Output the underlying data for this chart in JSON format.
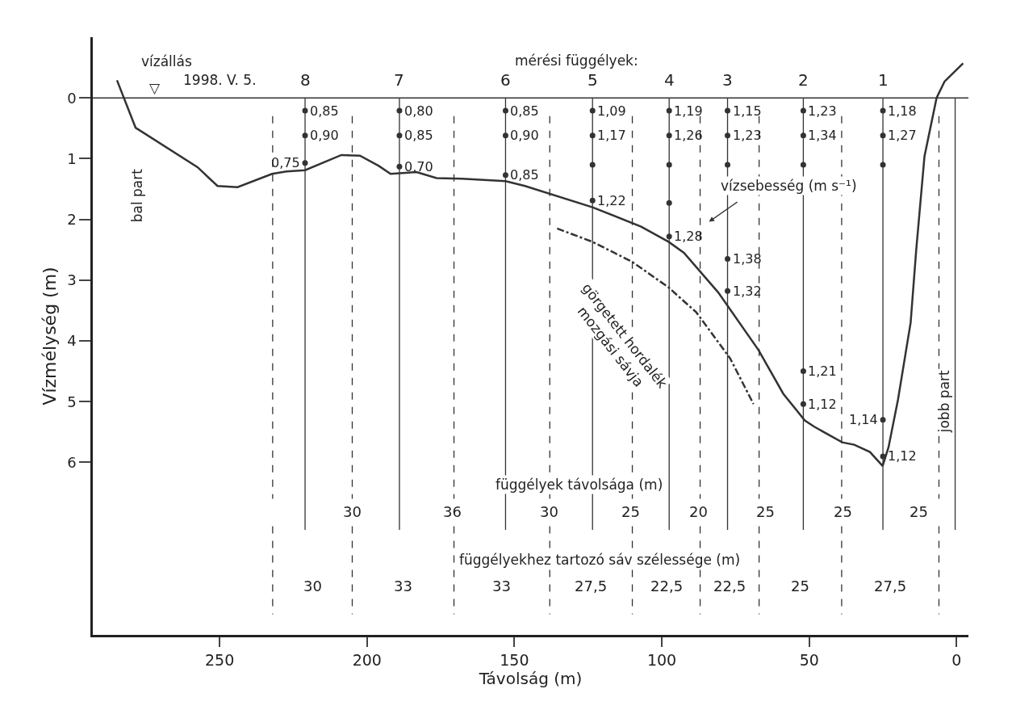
{
  "chart_data": {
    "type": "line",
    "xlabel": "Távolság (m)",
    "ylabel": "Vízmélység (m)",
    "xlim": [
      293,
      -4
    ],
    "xticks": [
      250,
      200,
      150,
      100,
      50,
      0
    ],
    "ylim": [
      8.84,
      -1.0
    ],
    "yticks": [
      0,
      1,
      2,
      3,
      4,
      5,
      6
    ],
    "series": [
      {
        "type": "line",
        "color": "#333333",
        "line_style": "solid",
        "x": [
          284.8,
          278.5,
          257.5,
          250.7,
          243.9,
          232.2,
          227.3,
          221,
          208.7,
          202.4,
          196,
          192,
          183.2,
          176.4,
          167.8,
          153,
          146.4,
          123.5,
          107,
          97.7,
          92.5,
          80.9,
          67.2,
          58.8,
          51.5,
          48.4,
          38.8,
          34.7,
          29.4,
          25.1,
          23.1,
          19.9,
          15.6,
          13.7,
          10.9,
          6.8,
          4.1,
          -2.2
        ],
        "values": [
          -0.29,
          0.49,
          1.14,
          1.45,
          1.47,
          1.25,
          1.21,
          1.19,
          0.94,
          0.95,
          1.12,
          1.25,
          1.22,
          1.32,
          1.33,
          1.37,
          1.45,
          1.8,
          2.12,
          2.37,
          2.55,
          3.2,
          4.15,
          4.87,
          5.31,
          5.41,
          5.67,
          5.71,
          5.83,
          6.06,
          5.75,
          4.97,
          3.7,
          2.5,
          0.96,
          0,
          -0.27,
          -0.57
        ]
      },
      {
        "type": "line",
        "color": "#333333",
        "line_style": "dashdot",
        "x": [
          135.5,
          123.5,
          110,
          97.7,
          88.3,
          76.8,
          68.9
        ],
        "values": [
          2.15,
          2.37,
          2.7,
          3.12,
          3.53,
          4.29,
          5.04
        ]
      },
      {
        "type": "scatter",
        "color": "#333333",
        "marker": "circle",
        "x": [
          221,
          221,
          221,
          189,
          189,
          189,
          153,
          153,
          153,
          123.5,
          123.5,
          123.5,
          123.5,
          97.5,
          97.5,
          97.5,
          97.5,
          97.5,
          77.7,
          77.7,
          77.7,
          77.7,
          77.7,
          52,
          52,
          52,
          52,
          52,
          25,
          25,
          25,
          25,
          25
        ],
        "values": [
          0.21,
          0.62,
          1.07,
          0.21,
          0.62,
          1.13,
          0.21,
          0.62,
          1.27,
          0.21,
          0.62,
          1.1,
          1.69,
          0.21,
          0.62,
          1.1,
          1.73,
          2.28,
          0.21,
          0.62,
          1.1,
          2.65,
          3.18,
          0.21,
          0.62,
          1.1,
          4.5,
          5.04,
          0.21,
          0.62,
          1.1,
          5.3,
          5.9
        ]
      }
    ],
    "ref_lines": [
      {
        "axis": "y",
        "value": 0,
        "line_style": "solid",
        "color": "#333333"
      },
      {
        "axis": "x",
        "value": 221,
        "line_style": "solid",
        "color": "#333333"
      },
      {
        "axis": "x",
        "value": 189,
        "line_style": "solid",
        "color": "#333333"
      },
      {
        "axis": "x",
        "value": 153,
        "line_style": "solid",
        "color": "#333333"
      },
      {
        "axis": "x",
        "value": 123.5,
        "line_style": "solid",
        "color": "#333333"
      },
      {
        "axis": "x",
        "value": 97.5,
        "line_style": "solid",
        "color": "#333333"
      },
      {
        "axis": "x",
        "value": 77.7,
        "line_style": "solid",
        "color": "#333333"
      },
      {
        "axis": "x",
        "value": 52,
        "line_style": "solid",
        "color": "#333333"
      },
      {
        "axis": "x",
        "value": 25,
        "line_style": "solid",
        "color": "#333333"
      },
      {
        "axis": "x",
        "value": 0.5,
        "line_style": "solid",
        "color": "#333333"
      },
      {
        "axis": "x",
        "value": 232,
        "line_style": "dashed",
        "color": "#333333"
      },
      {
        "axis": "x",
        "value": 205,
        "line_style": "dashed",
        "color": "#333333"
      },
      {
        "axis": "x",
        "value": 170.5,
        "line_style": "dashed",
        "color": "#333333"
      },
      {
        "axis": "x",
        "value": 138,
        "line_style": "dashed",
        "color": "#333333"
      },
      {
        "axis": "x",
        "value": 110,
        "line_style": "dashed",
        "color": "#333333"
      },
      {
        "axis": "x",
        "value": 87,
        "line_style": "dashed",
        "color": "#333333"
      },
      {
        "axis": "x",
        "value": 67,
        "line_style": "dashed",
        "color": "#333333"
      },
      {
        "axis": "x",
        "value": 39,
        "line_style": "dashed",
        "color": "#333333"
      },
      {
        "axis": "x",
        "value": 6,
        "line_style": "dashed",
        "color": "#333333"
      }
    ],
    "annotations": [
      "mérési függélyek:",
      "vízállás",
      "1998. V. 5.",
      "▽",
      "bal part",
      "jobb part",
      "vízsebesség (m s⁻¹)",
      "görgetett hordalék\nmozgási sávja",
      "függélyek távolsága (m)",
      "30",
      "36",
      "30",
      "25",
      "20",
      "25",
      "25",
      "25",
      "függélyekhez tartozó sáv szélessége (m)",
      "30",
      "33",
      "33",
      "27,5",
      "22,5",
      "22,5",
      "25",
      "27,5",
      "8",
      "7",
      "6",
      "5",
      "4",
      "3",
      "2",
      "1",
      {
        "text": "0,85",
        "x": 221,
        "y": 0.21
      },
      {
        "text": "0,90",
        "x": 221,
        "y": 0.62
      },
      {
        "text": "0,75",
        "x": 221,
        "y": 1.07
      },
      {
        "text": "0,80",
        "x": 189,
        "y": 0.21
      },
      {
        "text": "0,85",
        "x": 189,
        "y": 0.62
      },
      {
        "text": "0,70",
        "x": 189,
        "y": 1.13
      },
      {
        "text": "0,85",
        "x": 153,
        "y": 0.21
      },
      {
        "text": "0,90",
        "x": 153,
        "y": 0.62
      },
      {
        "text": "0,85",
        "x": 153,
        "y": 1.27
      },
      {
        "text": "1,09",
        "x": 123.5,
        "y": 0.21
      },
      {
        "text": "1,17",
        "x": 123.5,
        "y": 0.62
      },
      {
        "text": "1,22",
        "x": 123.5,
        "y": 1.69
      },
      {
        "text": "1,19",
        "x": 97.5,
        "y": 0.21
      },
      {
        "text": "1,26",
        "x": 97.5,
        "y": 0.62
      },
      {
        "text": "1,28",
        "x": 97.5,
        "y": 2.28
      },
      {
        "text": "1,15",
        "x": 77.7,
        "y": 0.21
      },
      {
        "text": "1,23",
        "x": 77.7,
        "y": 0.62
      },
      {
        "text": "1,38",
        "x": 77.7,
        "y": 2.65
      },
      {
        "text": "1,32",
        "x": 77.7,
        "y": 3.18
      },
      {
        "text": "1,23",
        "x": 52,
        "y": 0.21
      },
      {
        "text": "1,34",
        "x": 52,
        "y": 0.62
      },
      {
        "text": "1,21",
        "x": 52,
        "y": 4.5
      },
      {
        "text": "1,12",
        "x": 52,
        "y": 5.04
      },
      {
        "text": "1,18",
        "x": 25,
        "y": 0.21
      },
      {
        "text": "1,27",
        "x": 25,
        "y": 0.62
      },
      {
        "text": "1,14",
        "x": 25,
        "y": 5.3
      },
      {
        "text": "1,12",
        "x": 25,
        "y": 5.9
      }
    ]
  }
}
